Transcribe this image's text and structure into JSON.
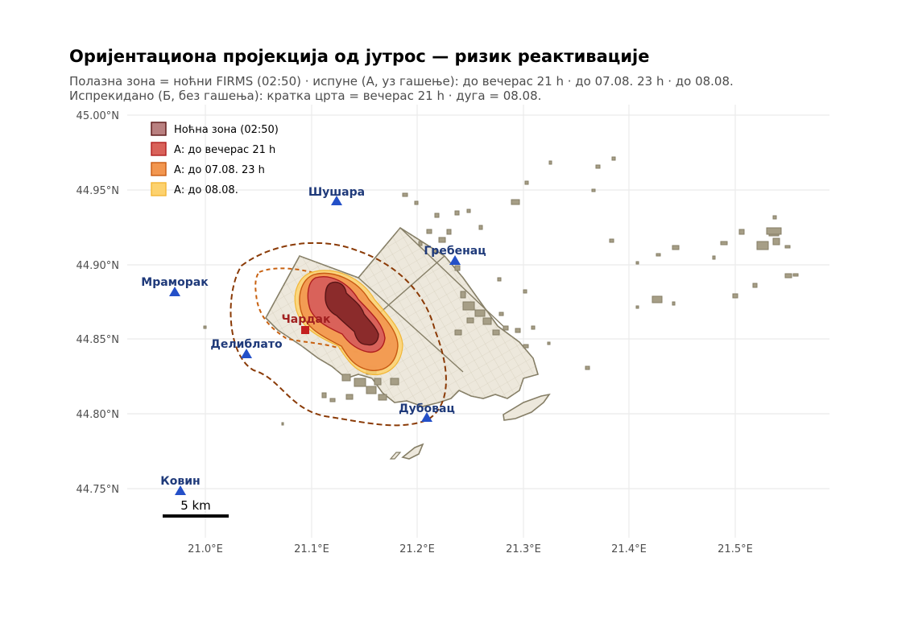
{
  "title": "Оријентациона пројекција од јутрос — ризик реактивације",
  "subtitle_line1": "Полазна зона = ноћни FIRMS (02:50) · испуне (А, уз гашење): до вечерас 21 h · до 07.08. 23 h · до 08.08.",
  "subtitle_line2": "Испрекидано (Б, без гашења): кратка црта = вечерас 21 h · дуга = 08.08.",
  "axes": {
    "y_ticks": [
      "45.00°N",
      "44.95°N",
      "44.90°N",
      "44.85°N",
      "44.80°N",
      "44.75°N"
    ],
    "x_ticks": [
      "21.0°E",
      "21.1°E",
      "21.2°E",
      "21.3°E",
      "21.4°E",
      "21.5°E"
    ],
    "lat_range": [
      44.72,
      45.01
    ],
    "lon_range": [
      20.93,
      21.59
    ]
  },
  "legend": {
    "position": "top-left",
    "items": [
      {
        "label": "Ноћна зона (02:50)",
        "fill": "#8b2b2b",
        "stroke": "#5a1515"
      },
      {
        "label": "А: до вечерас 21 h",
        "fill": "#d9625a",
        "stroke": "#b01e1e"
      },
      {
        "label": "А: до 07.08. 23 h",
        "fill": "#f2964f",
        "stroke": "#c85a12"
      },
      {
        "label": "А: до 08.08.",
        "fill": "#fdd26e",
        "stroke": "#f2b635"
      }
    ]
  },
  "places": [
    {
      "name": "Шушара",
      "type": "village",
      "lat": 44.942,
      "lon": 21.123
    },
    {
      "name": "Гребенац",
      "type": "village",
      "lat": 44.903,
      "lon": 21.235
    },
    {
      "name": "Мраморак",
      "type": "village",
      "lat": 44.881,
      "lon": 20.971
    },
    {
      "name": "Делиблато",
      "type": "village",
      "lat": 44.839,
      "lon": 21.038
    },
    {
      "name": "Дубовац",
      "type": "village",
      "lat": 44.797,
      "lon": 21.208
    },
    {
      "name": "Ковин",
      "type": "town",
      "lat": 44.748,
      "lon": 20.976
    },
    {
      "name": "Чардак",
      "type": "fire-origin",
      "lat": 44.856,
      "lon": 21.093
    }
  ],
  "scale_bar": {
    "label": "5 km"
  },
  "colors": {
    "grid": "#ebebeb",
    "sand_fill": "#ede8dc",
    "sand_stroke": "#857e66",
    "place_marker": "#2450c8",
    "origin_marker": "#c42020",
    "dash_short": "#c8600f",
    "dash_long": "#8a3a06"
  }
}
